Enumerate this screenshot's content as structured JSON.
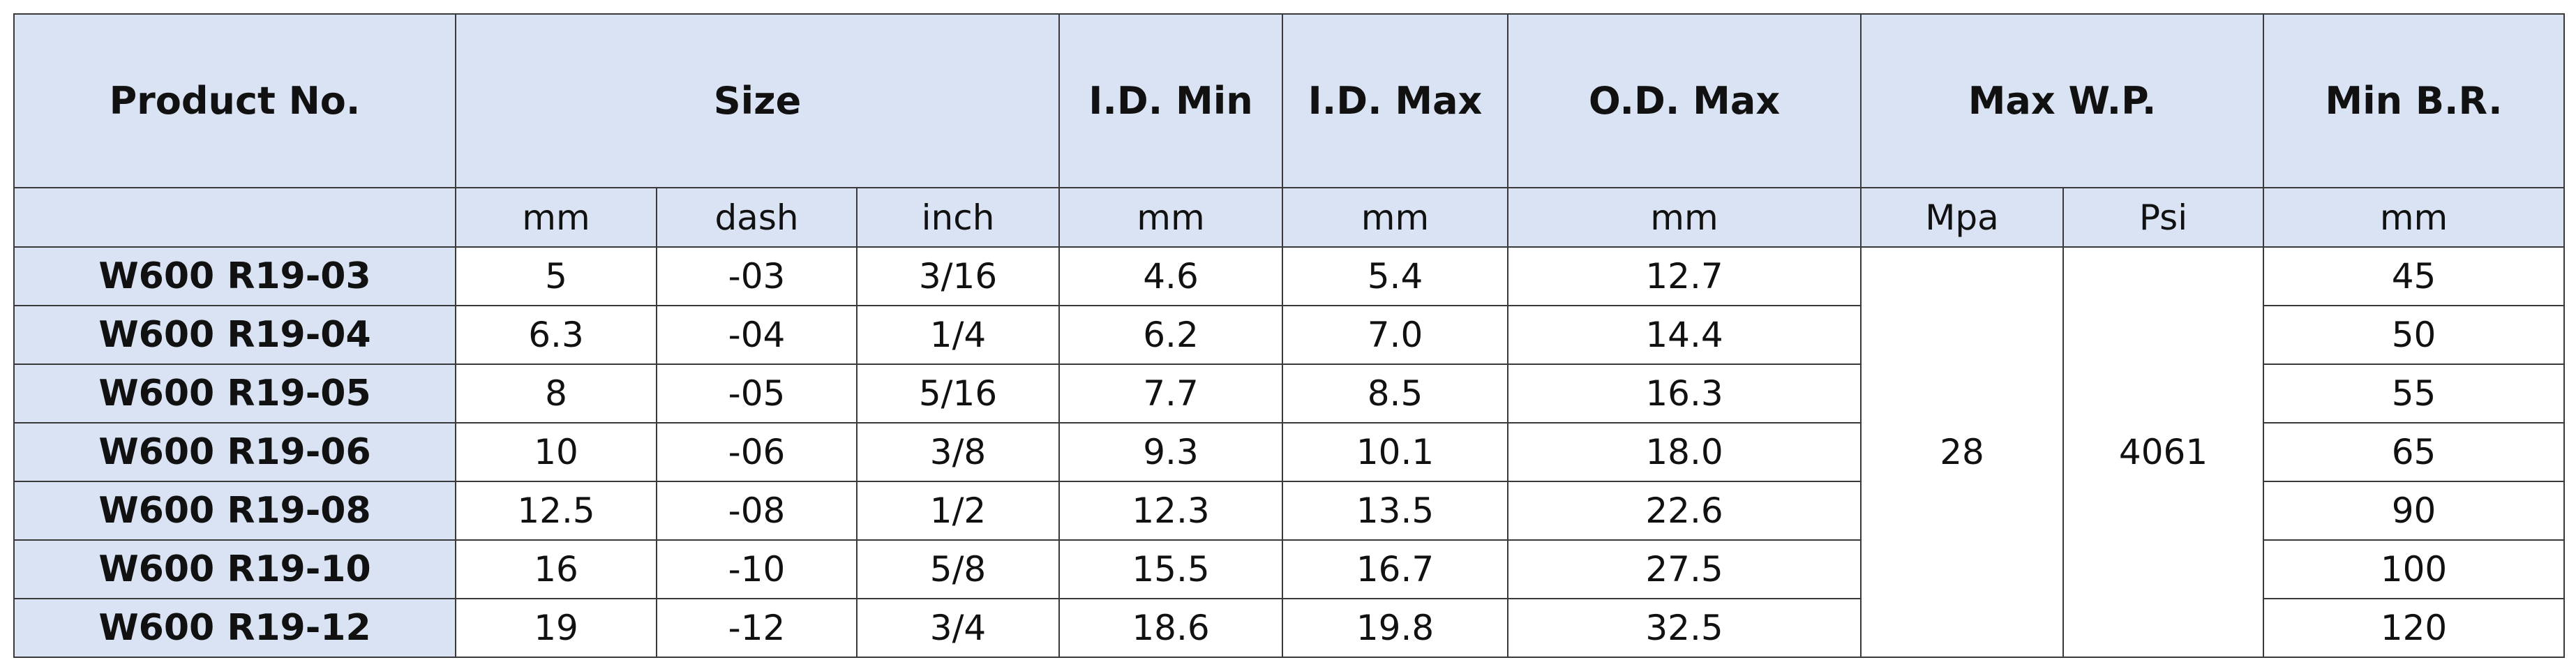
{
  "table": {
    "headers": [
      "Product No.",
      "Size",
      "I.D. Min",
      "I.D. Max",
      "O.D. Max",
      "Max W.P.",
      "Min B.R."
    ],
    "units": [
      "mm",
      "dash",
      "inch",
      "mm",
      "mm",
      "mm",
      "Mpa",
      "Psi",
      "mm"
    ],
    "pressure": {
      "mpa": "28",
      "psi": "4061"
    },
    "rows": [
      [
        "W600 R19-03",
        "5",
        "-03",
        "3/16",
        "4.6",
        "5.4",
        "12.7",
        "45"
      ],
      [
        "W600 R19-04",
        "6.3",
        "-04",
        "1/4",
        "6.2",
        "7.0",
        "14.4",
        "50"
      ],
      [
        "W600 R19-05",
        "8",
        "-05",
        "5/16",
        "7.7",
        "8.5",
        "16.3",
        "55"
      ],
      [
        "W600 R19-06",
        "10",
        "-06",
        "3/8",
        "9.3",
        "10.1",
        "18.0",
        "65"
      ],
      [
        "W600 R19-08",
        "12.5",
        "-08",
        "1/2",
        "12.3",
        "13.5",
        "22.6",
        "90"
      ],
      [
        "W600 R19-10",
        "16",
        "-10",
        "5/8",
        "15.5",
        "16.7",
        "27.5",
        "100"
      ],
      [
        "W600 R19-12",
        "19",
        "-12",
        "3/4",
        "18.6",
        "19.8",
        "32.5",
        "120"
      ]
    ]
  }
}
